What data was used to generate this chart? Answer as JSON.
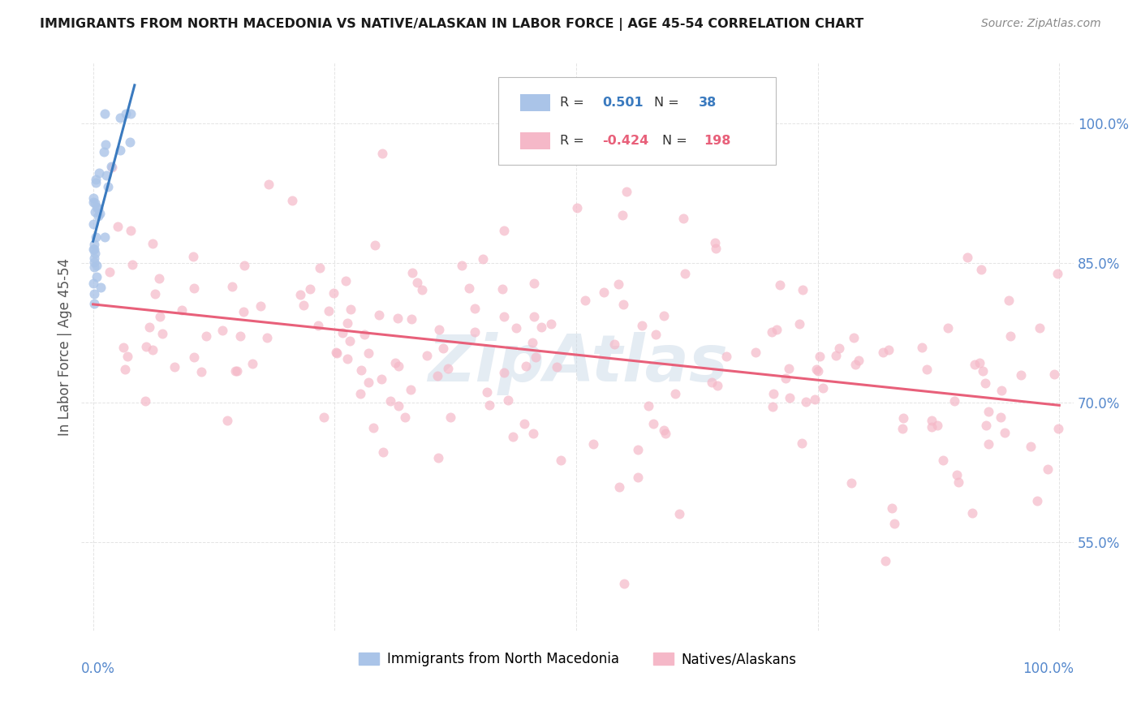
{
  "title": "IMMIGRANTS FROM NORTH MACEDONIA VS NATIVE/ALASKAN IN LABOR FORCE | AGE 45-54 CORRELATION CHART",
  "source": "Source: ZipAtlas.com",
  "ylabel": "In Labor Force | Age 45-54",
  "watermark": "ZipAtlas",
  "legend_blue_label": "Immigrants from North Macedonia",
  "legend_pink_label": "Natives/Alaskans",
  "blue_R": 0.501,
  "blue_N": 38,
  "pink_R": -0.424,
  "pink_N": 198,
  "blue_color": "#aac4e8",
  "pink_color": "#f5b8c8",
  "blue_line_color": "#3a7abf",
  "pink_line_color": "#e8607a",
  "background_color": "#ffffff",
  "grid_color": "#dddddd",
  "yticks": [
    0.55,
    0.7,
    0.85,
    1.0
  ],
  "ytick_labels": [
    "55.0%",
    "70.0%",
    "85.0%",
    "100.0%"
  ]
}
